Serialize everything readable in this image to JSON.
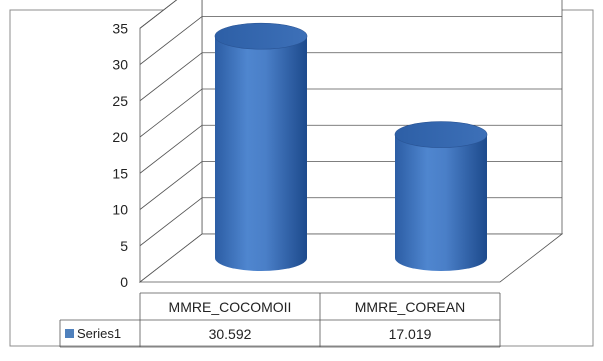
{
  "chart_data": {
    "type": "bar",
    "style": "3d-cylinder",
    "categories": [
      "MMRE_COCOMOII",
      "MMRE_COREAN"
    ],
    "series": [
      {
        "name": "Series1",
        "values": [
          30.592,
          17.019
        ],
        "color": "#4f81bd"
      }
    ],
    "table_values": [
      "30.592",
      "17.019"
    ],
    "ylim": [
      0,
      35
    ],
    "yticks": [
      0,
      5,
      10,
      15,
      20,
      25,
      30,
      35
    ],
    "ytick_labels": [
      "0",
      "5",
      "10",
      "15",
      "20",
      "25",
      "30",
      "35"
    ],
    "grid": true,
    "legend": "data-table",
    "title": "",
    "xlabel": "",
    "ylabel": ""
  }
}
